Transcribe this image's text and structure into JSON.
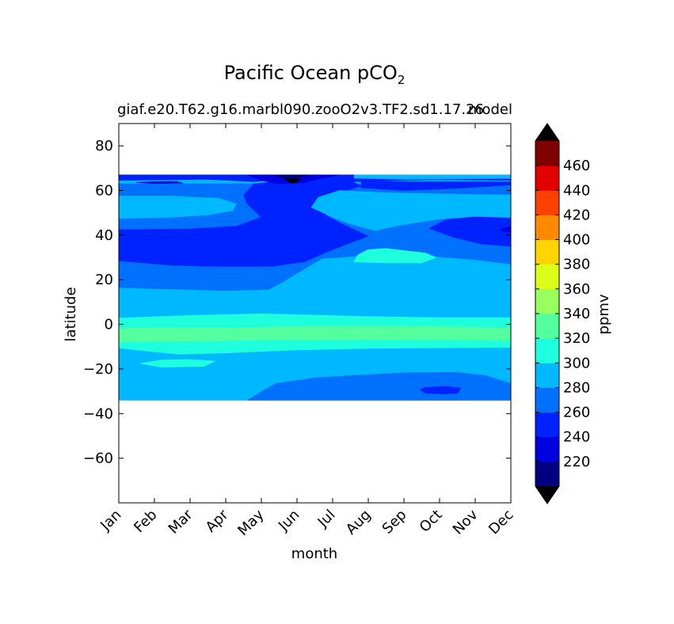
{
  "chart_data": {
    "type": "heatmap",
    "title": "Pacific Ocean pCO",
    "title_subscript": "2",
    "subtitle_left": "giaf.e20.T62.g16.marbl090.zooO2v3.TF2.sd1.17.26",
    "subtitle_right": "model",
    "xlabel": "month",
    "ylabel": "latitude",
    "x_categories": [
      "Jan",
      "Feb",
      "Mar",
      "Apr",
      "May",
      "Jun",
      "Jul",
      "Aug",
      "Sep",
      "Oct",
      "Nov",
      "Dec"
    ],
    "xlim": [
      1,
      12
    ],
    "ylim": [
      -80,
      90
    ],
    "y_ticks": [
      80,
      60,
      40,
      20,
      0,
      -20,
      -40,
      -60
    ],
    "y_tick_labels": [
      "80",
      "60",
      "40",
      "20",
      "0",
      "−20",
      "−40",
      "−60"
    ],
    "data_lat_range": [
      -34,
      67
    ],
    "grid": false,
    "colorbar": {
      "label": "ppmv",
      "extend": "both",
      "levels": [
        200,
        220,
        240,
        260,
        280,
        300,
        320,
        340,
        360,
        380,
        400,
        420,
        440,
        460,
        480
      ],
      "tick_labels": [
        "220",
        "240",
        "260",
        "280",
        "300",
        "320",
        "340",
        "360",
        "380",
        "400",
        "420",
        "440",
        "460"
      ],
      "colors": [
        "#000080",
        "#0000e0",
        "#0022ff",
        "#0070ff",
        "#00b8ff",
        "#1effde",
        "#54ff9e",
        "#98ff5e",
        "#dcff1a",
        "#ffd500",
        "#ff8900",
        "#ff4000",
        "#e30000",
        "#800000"
      ],
      "under_color": "#000000",
      "over_color": "#000000"
    },
    "regions": [
      {
        "value": 290,
        "lon_lat": [
          [
            1,
            -34
          ],
          [
            12,
            -34
          ],
          [
            12,
            67
          ],
          [
            1,
            67
          ]
        ]
      },
      {
        "value": 270,
        "lon_lat": [
          [
            4.6,
            -34
          ],
          [
            5.4,
            -26.5
          ],
          [
            6.5,
            -24
          ],
          [
            7.5,
            -23
          ],
          [
            9,
            -21.7
          ],
          [
            10.5,
            -21.5
          ],
          [
            11.3,
            -23
          ],
          [
            12,
            -26.5
          ],
          [
            12,
            -34
          ]
        ]
      },
      {
        "value": 250,
        "lon_lat": [
          [
            9.6,
            -28.2
          ],
          [
            10.2,
            -27.8
          ],
          [
            10.6,
            -28.6
          ],
          [
            10.5,
            -30.8
          ],
          [
            10.1,
            -31.2
          ],
          [
            9.6,
            -30.8
          ],
          [
            9.45,
            -29.3
          ]
        ]
      },
      {
        "value": 310,
        "lon_lat": [
          [
            1,
            -10.5
          ],
          [
            1.8,
            -12
          ],
          [
            2.7,
            -13.4
          ],
          [
            4,
            -12.8
          ],
          [
            6,
            -11.5
          ],
          [
            8,
            -10.8
          ],
          [
            10,
            -10.5
          ],
          [
            12,
            -10.4
          ],
          [
            12,
            3
          ],
          [
            10,
            3
          ],
          [
            8,
            3.5
          ],
          [
            5,
            4.7
          ],
          [
            3,
            4
          ],
          [
            1,
            2.8
          ]
        ]
      },
      {
        "value": 330,
        "lon_lat": [
          [
            1,
            -7.8
          ],
          [
            4,
            -7.3
          ],
          [
            6,
            -6.8
          ],
          [
            8,
            -6.7
          ],
          [
            10,
            -6.8
          ],
          [
            12,
            -7.3
          ],
          [
            12,
            -1.5
          ],
          [
            10,
            -1
          ],
          [
            8,
            -1
          ],
          [
            6,
            -1
          ],
          [
            4,
            -1.5
          ],
          [
            2,
            -1.5
          ],
          [
            1,
            -1.8
          ]
        ]
      },
      {
        "value": 310,
        "lon_lat": [
          [
            1.6,
            -17.5
          ],
          [
            2.2,
            -19.2
          ],
          [
            3.4,
            -18.8
          ],
          [
            3.7,
            -16.4
          ],
          [
            2.9,
            -15.8
          ],
          [
            2.2,
            -16
          ]
        ]
      },
      {
        "value": 270,
        "lon_lat": [
          [
            1,
            16.5
          ],
          [
            2,
            16
          ],
          [
            4,
            15.2
          ],
          [
            5.2,
            15.6
          ],
          [
            5.6,
            19
          ],
          [
            5.9,
            22
          ],
          [
            6.7,
            29.5
          ],
          [
            8,
            31
          ],
          [
            9.5,
            31
          ],
          [
            11,
            29
          ],
          [
            12,
            27
          ],
          [
            12,
            63
          ],
          [
            1,
            63
          ]
        ]
      },
      {
        "value": 250,
        "lon_lat": [
          [
            1,
            28.5
          ],
          [
            2.5,
            26.5
          ],
          [
            3.5,
            26
          ],
          [
            5.3,
            26
          ],
          [
            6.2,
            28
          ],
          [
            6.7,
            31.5
          ],
          [
            7.4,
            36
          ],
          [
            8,
            39.5
          ],
          [
            7.2,
            45.5
          ],
          [
            6.8,
            49
          ],
          [
            6.7,
            54
          ],
          [
            6.9,
            57.5
          ],
          [
            7.8,
            62
          ],
          [
            7.5,
            64.5
          ],
          [
            6,
            65
          ],
          [
            4.8,
            63
          ],
          [
            4.5,
            58
          ],
          [
            4.6,
            54
          ],
          [
            5,
            48
          ],
          [
            4.3,
            44
          ],
          [
            3,
            42.8
          ],
          [
            1,
            42.5
          ]
        ]
      },
      {
        "value": 250,
        "lon_lat": [
          [
            9.7,
            43
          ],
          [
            10.4,
            39
          ],
          [
            11.2,
            36
          ],
          [
            12,
            35
          ],
          [
            12,
            47.5
          ],
          [
            11,
            48.2
          ],
          [
            10.2,
            47
          ]
        ]
      },
      {
        "value": 290,
        "lon_lat": [
          [
            1,
            47.5
          ],
          [
            2.5,
            48
          ],
          [
            3.5,
            49
          ],
          [
            4.2,
            51
          ],
          [
            4.3,
            54
          ],
          [
            3.8,
            56.5
          ],
          [
            2.5,
            57.5
          ],
          [
            1,
            57.5
          ]
        ]
      },
      {
        "value": 270,
        "lon_lat": [
          [
            1,
            59.5
          ],
          [
            3,
            59.2
          ],
          [
            4.4,
            58.5
          ],
          [
            4.5,
            63
          ],
          [
            3,
            61.5
          ],
          [
            1,
            61.5
          ]
        ]
      },
      {
        "value": 310,
        "lon_lat": [
          [
            7.6,
            28
          ],
          [
            8.5,
            27.5
          ],
          [
            9.5,
            27.5
          ],
          [
            9.9,
            30
          ],
          [
            9.6,
            32
          ],
          [
            8.5,
            34
          ],
          [
            8,
            33.5
          ],
          [
            7.7,
            31
          ]
        ]
      },
      {
        "value": 290,
        "lon_lat": [
          [
            6.4,
            52.5
          ],
          [
            7,
            48
          ],
          [
            7.5,
            45
          ],
          [
            8.2,
            42
          ],
          [
            8.6,
            43.5
          ],
          [
            9.1,
            45
          ],
          [
            10,
            47.2
          ],
          [
            11,
            48.4
          ],
          [
            12,
            48
          ],
          [
            12,
            58
          ],
          [
            10,
            58.5
          ],
          [
            8.5,
            59
          ],
          [
            7.2,
            60
          ],
          [
            6.6,
            57
          ]
        ]
      },
      {
        "value": 250,
        "lon_lat": [
          [
            7.8,
            61.2
          ],
          [
            9,
            60
          ],
          [
            10.5,
            61
          ],
          [
            12,
            62.5
          ],
          [
            12,
            64
          ],
          [
            7.8,
            64
          ]
        ]
      },
      {
        "value": 250,
        "lon_lat": [
          [
            1,
            64.5
          ],
          [
            3.5,
            65
          ],
          [
            4.8,
            64
          ],
          [
            5.5,
            65
          ],
          [
            6.5,
            64.5
          ],
          [
            7.8,
            64
          ],
          [
            10,
            64.8
          ],
          [
            12,
            64.5
          ],
          [
            12,
            67
          ],
          [
            1,
            67
          ]
        ]
      },
      {
        "value": 290,
        "lon_lat": [
          [
            7.6,
            65.5
          ],
          [
            9,
            65
          ],
          [
            10.5,
            65.2
          ],
          [
            12,
            65.4
          ],
          [
            12,
            67
          ],
          [
            7.6,
            67
          ]
        ]
      },
      {
        "value": 230,
        "lon_lat": [
          [
            4.6,
            67
          ],
          [
            5,
            64.5
          ],
          [
            5.5,
            63
          ],
          [
            6.2,
            63.5
          ],
          [
            6.6,
            65.2
          ],
          [
            7.2,
            67
          ]
        ]
      },
      {
        "value": 210,
        "lon_lat": [
          [
            5.4,
            67
          ],
          [
            5.6,
            65.3
          ],
          [
            6.1,
            65.8
          ],
          [
            6.3,
            67
          ]
        ]
      },
      {
        "value": 190,
        "lon_lat": [
          [
            5.65,
            65.2
          ],
          [
            5.85,
            63.3
          ],
          [
            6.05,
            64
          ],
          [
            6.1,
            65.4
          ]
        ]
      },
      {
        "value": 230,
        "lon_lat": [
          [
            1.5,
            63.6
          ],
          [
            2,
            63.1
          ],
          [
            2.8,
            63.3
          ],
          [
            2.6,
            64.1
          ],
          [
            1.9,
            64
          ]
        ]
      },
      {
        "value": 230,
        "lon_lat": [
          [
            11.7,
            42
          ],
          [
            12,
            41.2
          ],
          [
            12,
            43.8
          ],
          [
            11.8,
            43.3
          ]
        ]
      }
    ]
  }
}
